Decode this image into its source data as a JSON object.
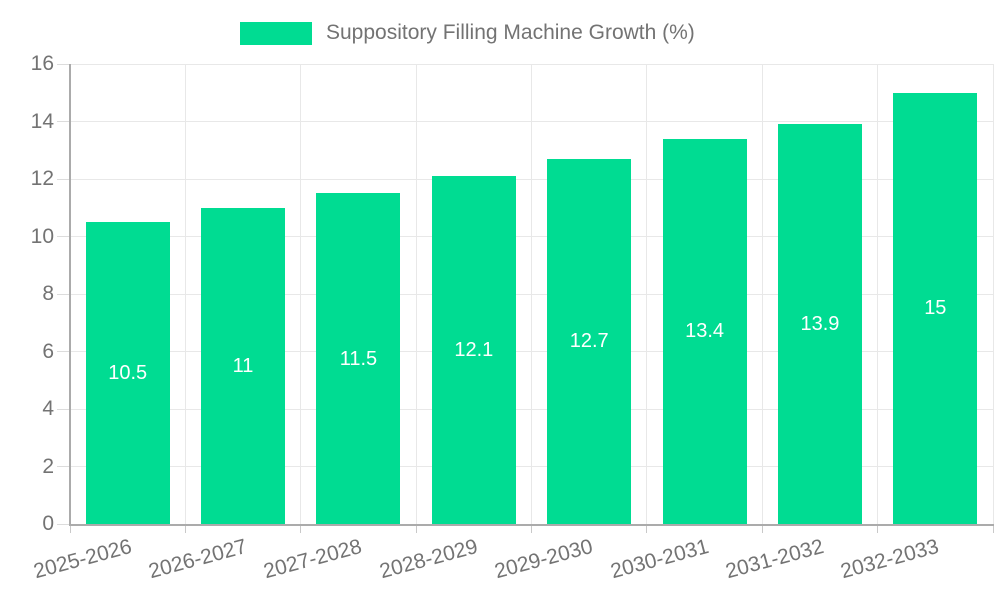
{
  "chart_data": {
    "type": "bar",
    "title": "",
    "legend": {
      "label": "Suppository Filling Machine Growth (%)",
      "position": "top",
      "swatch_color": "#00dc92"
    },
    "categories": [
      "2025-2026",
      "2026-2027",
      "2027-2028",
      "2028-2029",
      "2029-2030",
      "2030-2031",
      "2031-2032",
      "2032-2033"
    ],
    "series": [
      {
        "name": "Suppository Filling Machine Growth (%)",
        "values": [
          10.5,
          11,
          11.5,
          12.1,
          12.7,
          13.4,
          13.9,
          15
        ]
      }
    ],
    "value_labels": [
      "10.5",
      "11",
      "11.5",
      "12.1",
      "12.7",
      "13.4",
      "13.9",
      "15"
    ],
    "xlabel": "",
    "ylabel": "",
    "ylim": [
      0,
      16
    ],
    "yticks": [
      0,
      2,
      4,
      6,
      8,
      10,
      12,
      14,
      16
    ],
    "grid": "horizontal lines at y ticks, vertical lines at category boundaries",
    "value_label_position": "center of bar",
    "colors": {
      "bar": "#00dc92",
      "grid_line": "#e8e8e8",
      "axis_line": "#ababab",
      "tick_text": "#737373",
      "bar_label_text": "#ffffff",
      "background": "#ffffff"
    }
  }
}
